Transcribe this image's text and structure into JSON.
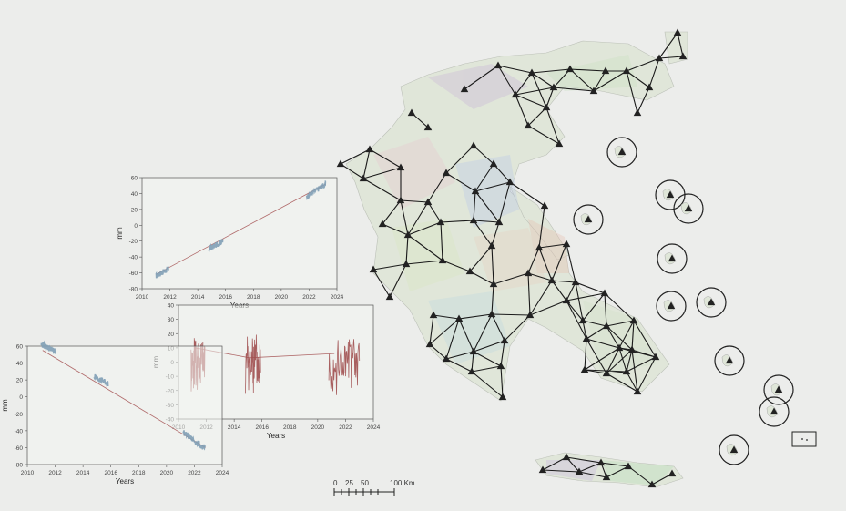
{
  "chart_data": [
    {
      "type": "line",
      "xlabel": "Years",
      "ylabel": "mm",
      "xlim": [
        2010,
        2024
      ],
      "ylim": [
        -80,
        60
      ],
      "xticks": [
        "2010",
        "2012",
        "2014",
        "2016",
        "2018",
        "2020",
        "2022",
        "2024"
      ],
      "yticks": [
        "60",
        "40",
        "20",
        "0",
        "-20",
        "-40",
        "-60",
        "-80"
      ],
      "trend": [
        [
          2011,
          -62
        ],
        [
          2023.2,
          52
        ]
      ],
      "segments": [
        [
          2011,
          2011.9,
          -64,
          -55
        ],
        [
          2014.8,
          2015.8,
          -30,
          -20
        ],
        [
          2021.8,
          2023.2,
          36,
          52
        ]
      ],
      "color": "#7f9fb5"
    },
    {
      "type": "line",
      "xlabel": "Years",
      "ylabel": "mm",
      "xlim": [
        2010,
        2024
      ],
      "ylim": [
        -40,
        40
      ],
      "xticks": [
        "2010",
        "2012",
        "2014",
        "2016",
        "2018",
        "2020",
        "2022",
        "2024"
      ],
      "yticks": [
        "40",
        "30",
        "20",
        "10",
        "0",
        "-10",
        "-20",
        "-30",
        "-40"
      ],
      "trend": [
        [
          2011.2,
          10
        ],
        [
          2015.1,
          3
        ],
        [
          2021.2,
          6
        ]
      ],
      "segments": [
        [
          2010.9,
          2011.9,
          0,
          0
        ],
        [
          2014.8,
          2015.9,
          0,
          0
        ],
        [
          2020.8,
          2023,
          0,
          0
        ]
      ],
      "color": "#a04f4f"
    },
    {
      "type": "line",
      "xlabel": "Years",
      "ylabel": "mm",
      "xlim": [
        2010,
        2024
      ],
      "ylim": [
        -80,
        60
      ],
      "xticks": [
        "2010",
        "2012",
        "2014",
        "2016",
        "2018",
        "2020",
        "2022",
        "2024"
      ],
      "yticks": [
        "60",
        "40",
        "20",
        "0",
        "-20",
        "-40",
        "-60",
        "-80"
      ],
      "trend": [
        [
          2011.1,
          55
        ],
        [
          2022.8,
          -60
        ]
      ],
      "segments": [
        [
          2011,
          2012,
          62,
          54
        ],
        [
          2014.8,
          2015.8,
          24,
          16
        ],
        [
          2021.2,
          2022.8,
          -42,
          -62
        ]
      ],
      "color": "#7f9fb5"
    }
  ],
  "scalebar": {
    "labels": [
      "0",
      "25",
      "50",
      "100 Km"
    ]
  }
}
